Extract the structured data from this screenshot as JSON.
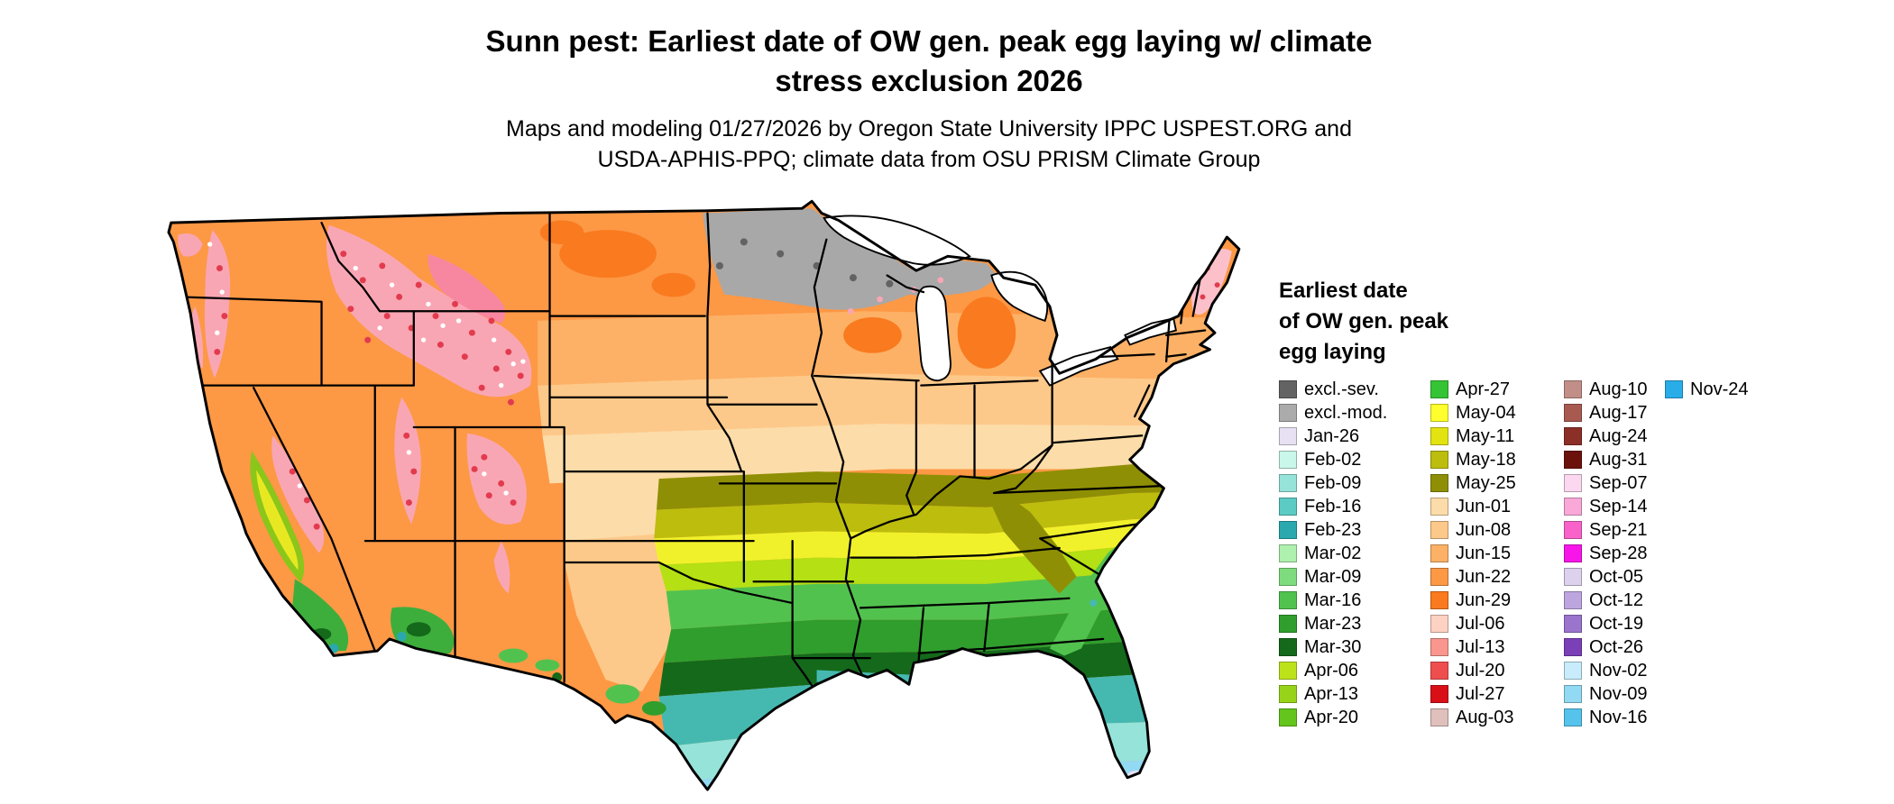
{
  "header": {
    "title_lines": [
      "Sunn pest: Earliest date of OW gen. peak egg laying w/ climate",
      "stress exclusion 2026"
    ],
    "subtitle_lines": [
      "Maps and modeling 01/27/2026 by Oregon State University IPPC USPEST.ORG and",
      "USDA-APHIS-PPQ; climate data from OSU PRISM Climate Group"
    ]
  },
  "legend": {
    "title_lines": [
      "Earliest date",
      "of OW gen. peak",
      "egg laying"
    ],
    "columns": [
      [
        {
          "label": "excl.-sev.",
          "color": "#636363"
        },
        {
          "label": "excl.-mod.",
          "color": "#ababab"
        },
        {
          "label": "Jan-26",
          "color": "#e7e1f3"
        },
        {
          "label": "Feb-02",
          "color": "#c9f7ea"
        },
        {
          "label": "Feb-09",
          "color": "#96e3da"
        },
        {
          "label": "Feb-16",
          "color": "#5ccbc3"
        },
        {
          "label": "Feb-23",
          "color": "#2aa8ad"
        },
        {
          "label": "Mar-02",
          "color": "#aef0ae"
        },
        {
          "label": "Mar-09",
          "color": "#7edc7e"
        },
        {
          "label": "Mar-16",
          "color": "#52c24f"
        },
        {
          "label": "Mar-23",
          "color": "#2f9e2d"
        },
        {
          "label": "Mar-30",
          "color": "#14691b"
        },
        {
          "label": "Apr-06",
          "color": "#bce31a"
        },
        {
          "label": "Apr-13",
          "color": "#97d419"
        },
        {
          "label": "Apr-20",
          "color": "#64c51c"
        }
      ],
      [
        {
          "label": "Apr-27",
          "color": "#35c435"
        },
        {
          "label": "May-04",
          "color": "#ffff2e"
        },
        {
          "label": "May-11",
          "color": "#e3e312"
        },
        {
          "label": "May-18",
          "color": "#bdbd0e"
        },
        {
          "label": "May-25",
          "color": "#8f8f05"
        },
        {
          "label": "Jun-01",
          "color": "#fcdca8"
        },
        {
          "label": "Jun-08",
          "color": "#fdc98a"
        },
        {
          "label": "Jun-15",
          "color": "#fdb166"
        },
        {
          "label": "Jun-22",
          "color": "#fd9845"
        },
        {
          "label": "Jun-29",
          "color": "#f97a1f"
        },
        {
          "label": "Jul-06",
          "color": "#fdd2c3"
        },
        {
          "label": "Jul-13",
          "color": "#f9968e"
        },
        {
          "label": "Jul-20",
          "color": "#ef4e4e"
        },
        {
          "label": "Jul-27",
          "color": "#d90f17"
        },
        {
          "label": "Aug-03",
          "color": "#dfc0bc"
        }
      ],
      [
        {
          "label": "Aug-10",
          "color": "#c18e88"
        },
        {
          "label": "Aug-17",
          "color": "#a85a50"
        },
        {
          "label": "Aug-24",
          "color": "#8c2f27"
        },
        {
          "label": "Aug-31",
          "color": "#6b120c"
        },
        {
          "label": "Sep-07",
          "color": "#fbd8ef"
        },
        {
          "label": "Sep-14",
          "color": "#f9a8d8"
        },
        {
          "label": "Sep-21",
          "color": "#f963c9"
        },
        {
          "label": "Sep-28",
          "color": "#f715e9"
        },
        {
          "label": "Oct-05",
          "color": "#ddd1ee"
        },
        {
          "label": "Oct-12",
          "color": "#bda6e0"
        },
        {
          "label": "Oct-19",
          "color": "#9a74cd"
        },
        {
          "label": "Oct-26",
          "color": "#7b3fb8"
        },
        {
          "label": "Nov-02",
          "color": "#c8ecfb"
        },
        {
          "label": "Nov-09",
          "color": "#92d9f3"
        },
        {
          "label": "Nov-16",
          "color": "#56c3ec"
        }
      ],
      [
        {
          "label": "Nov-24",
          "color": "#29ade8"
        }
      ]
    ]
  }
}
